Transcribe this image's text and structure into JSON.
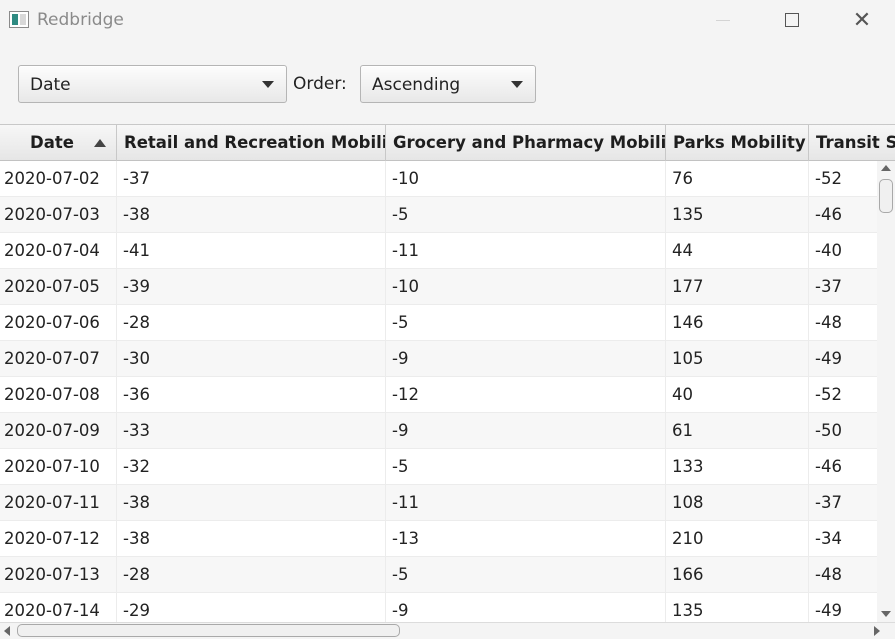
{
  "window": {
    "title": "Redbridge",
    "icons": {
      "app": "app-window-icon",
      "minimize": "minimize-icon",
      "maximize": "maximize-icon",
      "close": "close-icon"
    },
    "close_glyph": "✕"
  },
  "toolbar": {
    "sort_field": {
      "selected": "Date",
      "icon": "chevron-down-icon"
    },
    "order_label": "Order:",
    "order": {
      "selected": "Ascending",
      "icon": "chevron-down-icon"
    }
  },
  "table": {
    "columns": [
      "Date",
      "Retail and Recreation Mobility",
      "Grocery and Pharmacy Mobility",
      "Parks Mobility",
      "Transit Stations Mobility"
    ],
    "sort_indicator": "sort-ascending-icon",
    "rows": [
      [
        "2020-07-02",
        "-37",
        "-10",
        "76",
        "-52"
      ],
      [
        "2020-07-03",
        "-38",
        "-5",
        "135",
        "-46"
      ],
      [
        "2020-07-04",
        "-41",
        "-11",
        "44",
        "-40"
      ],
      [
        "2020-07-05",
        "-39",
        "-10",
        "177",
        "-37"
      ],
      [
        "2020-07-06",
        "-28",
        "-5",
        "146",
        "-48"
      ],
      [
        "2020-07-07",
        "-30",
        "-9",
        "105",
        "-49"
      ],
      [
        "2020-07-08",
        "-36",
        "-12",
        "40",
        "-52"
      ],
      [
        "2020-07-09",
        "-33",
        "-9",
        "61",
        "-50"
      ],
      [
        "2020-07-10",
        "-32",
        "-5",
        "133",
        "-46"
      ],
      [
        "2020-07-11",
        "-38",
        "-11",
        "108",
        "-37"
      ],
      [
        "2020-07-12",
        "-38",
        "-13",
        "210",
        "-34"
      ],
      [
        "2020-07-13",
        "-28",
        "-5",
        "166",
        "-48"
      ],
      [
        "2020-07-14",
        "-29",
        "-9",
        "135",
        "-49"
      ]
    ]
  }
}
